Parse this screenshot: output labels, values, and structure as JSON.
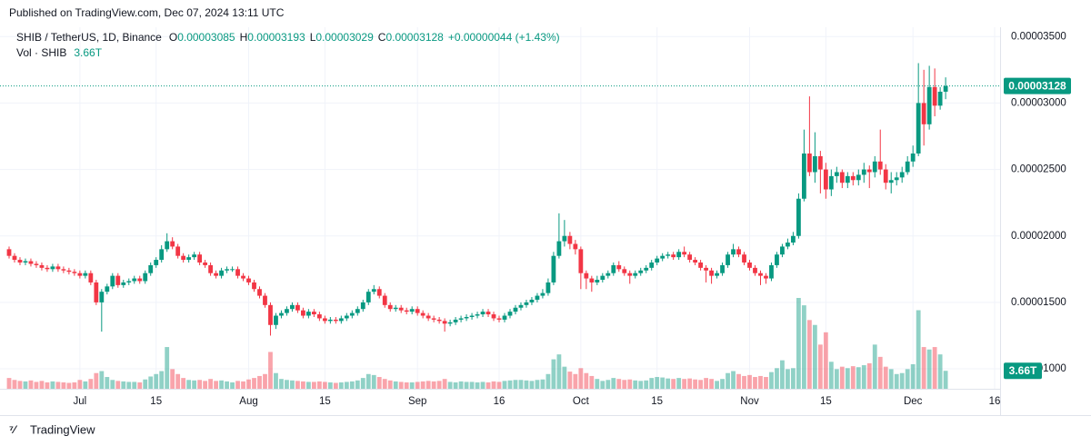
{
  "header": {
    "published": "Published on TradingView.com, Dec 07, 2024 13:11 UTC",
    "brand": "TradingView"
  },
  "chart_data": {
    "type": "candlestick",
    "symbol": "SHIB / TetherUS, 1D, Binance",
    "legend_ohlc": [
      {
        "key": "O",
        "text": "0.00003085"
      },
      {
        "key": "H",
        "text": "0.00003193"
      },
      {
        "key": "L",
        "text": "0.00003029"
      },
      {
        "key": "C",
        "text": "0.00003128"
      }
    ],
    "change": "+0.00000044 (+1.43%)",
    "volume_title": "Vol · SHIB",
    "volume_last": "3.66T",
    "last_price_label": "0.00003128",
    "up_color": "#089981",
    "down_color": "#f23645",
    "grid": true,
    "ylim": [
      8.5e-06,
      3.57e-05
    ],
    "yticks": [
      {
        "value": 3.5e-05,
        "label": "0.00003500"
      },
      {
        "value": 3e-05,
        "label": "0.00003000"
      },
      {
        "value": 2.5e-05,
        "label": "0.00002500"
      },
      {
        "value": 2e-05,
        "label": "0.00002000"
      },
      {
        "value": 1.5e-05,
        "label": "0.00001500"
      },
      {
        "value": 1e-05,
        "label": "0.00001000"
      }
    ],
    "xlim": [
      -1.67,
      182
    ],
    "xticks": [
      {
        "value": 13,
        "label": "Jul"
      },
      {
        "value": 27,
        "label": "15"
      },
      {
        "value": 44,
        "label": "Aug"
      },
      {
        "value": 58,
        "label": "15"
      },
      {
        "value": 75,
        "label": "Sep"
      },
      {
        "value": 90,
        "label": "16"
      },
      {
        "value": 105,
        "label": "Oct"
      },
      {
        "value": 119,
        "label": "15"
      },
      {
        "value": 136,
        "label": "Nov"
      },
      {
        "value": 150,
        "label": "15"
      },
      {
        "value": 166,
        "label": "Dec"
      },
      {
        "value": 181,
        "label": "16"
      }
    ],
    "open": [
      1.9e-05,
      1.85e-05,
      1.82e-05,
      1.8e-05,
      1.81e-05,
      1.79e-05,
      1.78e-05,
      1.76e-05,
      1.75e-05,
      1.77e-05,
      1.75e-05,
      1.74e-05,
      1.73e-05,
      1.72e-05,
      1.7e-05,
      1.72e-05,
      1.65e-05,
      1.5e-05,
      1.58e-05,
      1.62e-05,
      1.7e-05,
      1.63e-05,
      1.65e-05,
      1.66e-05,
      1.68e-05,
      1.66e-05,
      1.72e-05,
      1.78e-05,
      1.82e-05,
      1.9e-05,
      1.96e-05,
      1.92e-05,
      1.85e-05,
      1.82e-05,
      1.84e-05,
      1.86e-05,
      1.8e-05,
      1.78e-05,
      1.72e-05,
      1.7e-05,
      1.74e-05,
      1.75e-05,
      1.75e-05,
      1.7e-05,
      1.68e-05,
      1.65e-05,
      1.6e-05,
      1.55e-05,
      1.48e-05,
      1.33e-05,
      1.4e-05,
      1.42e-05,
      1.45e-05,
      1.48e-05,
      1.44e-05,
      1.4e-05,
      1.43e-05,
      1.41e-05,
      1.38e-05,
      1.36e-05,
      1.37e-05,
      1.36e-05,
      1.38e-05,
      1.4e-05,
      1.42e-05,
      1.45e-05,
      1.5e-05,
      1.58e-05,
      1.6e-05,
      1.55e-05,
      1.48e-05,
      1.45e-05,
      1.46e-05,
      1.44e-05,
      1.43e-05,
      1.45e-05,
      1.42e-05,
      1.4e-05,
      1.38e-05,
      1.37e-05,
      1.36e-05,
      1.34e-05,
      1.35e-05,
      1.37e-05,
      1.38e-05,
      1.39e-05,
      1.4e-05,
      1.41e-05,
      1.43e-05,
      1.41e-05,
      1.38e-05,
      1.37e-05,
      1.4e-05,
      1.43e-05,
      1.46e-05,
      1.48e-05,
      1.5e-05,
      1.52e-05,
      1.55e-05,
      1.57e-05,
      1.65e-05,
      1.85e-05,
      1.96e-05,
      2e-05,
      1.94e-05,
      1.9e-05,
      1.72e-05,
      1.68e-05,
      1.65e-05,
      1.67e-05,
      1.7e-05,
      1.72e-05,
      1.78e-05,
      1.75e-05,
      1.72e-05,
      1.7e-05,
      1.72e-05,
      1.74e-05,
      1.76e-05,
      1.8e-05,
      1.83e-05,
      1.85e-05,
      1.86e-05,
      1.84e-05,
      1.88e-05,
      1.86e-05,
      1.82e-05,
      1.8e-05,
      1.76e-05,
      1.74e-05,
      1.7e-05,
      1.72e-05,
      1.78e-05,
      1.86e-05,
      1.9e-05,
      1.86e-05,
      1.8e-05,
      1.76e-05,
      1.72e-05,
      1.7e-05,
      1.68e-05,
      1.78e-05,
      1.86e-05,
      1.92e-05,
      1.95e-05,
      2e-05,
      2.28e-05,
      2.62e-05,
      2.48e-05,
      2.6e-05,
      2.5e-05,
      2.35e-05,
      2.45e-05,
      2.48e-05,
      2.4e-05,
      2.45e-05,
      2.42e-05,
      2.46e-05,
      2.5e-05,
      2.48e-05,
      2.56e-05,
      2.5e-05,
      2.4e-05,
      2.42e-05,
      2.44e-05,
      2.48e-05,
      2.56e-05,
      2.62e-05,
      3e-05,
      2.84e-05,
      3.12e-05,
      2.98e-05,
      3.085e-05
    ],
    "high": [
      1.92e-05,
      1.87e-05,
      1.84e-05,
      1.83e-05,
      1.83e-05,
      1.81e-05,
      1.8e-05,
      1.78e-05,
      1.79e-05,
      1.79e-05,
      1.77e-05,
      1.76e-05,
      1.75e-05,
      1.74e-05,
      1.74e-05,
      1.74e-05,
      1.67e-05,
      1.6e-05,
      1.64e-05,
      1.72e-05,
      1.72e-05,
      1.67e-05,
      1.68e-05,
      1.7e-05,
      1.7e-05,
      1.74e-05,
      1.8e-05,
      1.84e-05,
      1.93e-05,
      2.02e-05,
      1.99e-05,
      1.94e-05,
      1.87e-05,
      1.86e-05,
      1.88e-05,
      1.88e-05,
      1.82e-05,
      1.8e-05,
      1.74e-05,
      1.76e-05,
      1.77e-05,
      1.77e-05,
      1.77e-05,
      1.72e-05,
      1.7e-05,
      1.67e-05,
      1.62e-05,
      1.57e-05,
      1.5e-05,
      1.42e-05,
      1.44e-05,
      1.47e-05,
      1.5e-05,
      1.5e-05,
      1.46e-05,
      1.45e-05,
      1.45e-05,
      1.43e-05,
      1.4e-05,
      1.39e-05,
      1.39e-05,
      1.4e-05,
      1.42e-05,
      1.44e-05,
      1.47e-05,
      1.52e-05,
      1.6e-05,
      1.63e-05,
      1.62e-05,
      1.57e-05,
      1.5e-05,
      1.48e-05,
      1.48e-05,
      1.46e-05,
      1.47e-05,
      1.47e-05,
      1.44e-05,
      1.42e-05,
      1.4e-05,
      1.39e-05,
      1.38e-05,
      1.37e-05,
      1.39e-05,
      1.4e-05,
      1.41e-05,
      1.42e-05,
      1.43e-05,
      1.45e-05,
      1.45e-05,
      1.43e-05,
      1.4e-05,
      1.42e-05,
      1.45e-05,
      1.48e-05,
      1.5e-05,
      1.52e-05,
      1.54e-05,
      1.57e-05,
      1.6e-05,
      1.68e-05,
      1.88e-05,
      2.17e-05,
      2.12e-05,
      2.03e-05,
      1.97e-05,
      1.92e-05,
      1.74e-05,
      1.7e-05,
      1.7e-05,
      1.72e-05,
      1.74e-05,
      1.8e-05,
      1.81e-05,
      1.77e-05,
      1.74e-05,
      1.74e-05,
      1.76e-05,
      1.78e-05,
      1.82e-05,
      1.85e-05,
      1.87e-05,
      1.88e-05,
      1.88e-05,
      1.9e-05,
      1.92e-05,
      1.88e-05,
      1.84e-05,
      1.82e-05,
      1.78e-05,
      1.76e-05,
      1.74e-05,
      1.8e-05,
      1.88e-05,
      1.94e-05,
      1.92e-05,
      1.88e-05,
      1.82e-05,
      1.78e-05,
      1.74e-05,
      1.72e-05,
      1.8e-05,
      1.88e-05,
      1.94e-05,
      1.98e-05,
      2.03e-05,
      2.32e-05,
      2.8e-05,
      3.05e-05,
      2.78e-05,
      2.64e-05,
      2.55e-05,
      2.5e-05,
      2.52e-05,
      2.5e-05,
      2.48e-05,
      2.48e-05,
      2.5e-05,
      2.55e-05,
      2.53e-05,
      2.6e-05,
      2.8e-05,
      2.54e-05,
      2.48e-05,
      2.48e-05,
      2.52e-05,
      2.6e-05,
      2.68e-05,
      3.3e-05,
      3.25e-05,
      3.28e-05,
      3.26e-05,
      3.12e-05,
      3.193e-05
    ],
    "low": [
      1.83e-05,
      1.8e-05,
      1.78e-05,
      1.78e-05,
      1.77e-05,
      1.76e-05,
      1.74e-05,
      1.73e-05,
      1.73e-05,
      1.73e-05,
      1.72e-05,
      1.71e-05,
      1.7e-05,
      1.68e-05,
      1.68e-05,
      1.63e-05,
      1.48e-05,
      1.28e-05,
      1.56e-05,
      1.6e-05,
      1.61e-05,
      1.61e-05,
      1.63e-05,
      1.64e-05,
      1.64e-05,
      1.64e-05,
      1.7e-05,
      1.76e-05,
      1.8e-05,
      1.88e-05,
      1.9e-05,
      1.83e-05,
      1.8e-05,
      1.8e-05,
      1.82e-05,
      1.78e-05,
      1.76e-05,
      1.7e-05,
      1.68e-05,
      1.68e-05,
      1.72e-05,
      1.73e-05,
      1.68e-05,
      1.66e-05,
      1.63e-05,
      1.58e-05,
      1.53e-05,
      1.46e-05,
      1.25e-05,
      1.3e-05,
      1.38e-05,
      1.4e-05,
      1.43e-05,
      1.42e-05,
      1.38e-05,
      1.38e-05,
      1.39e-05,
      1.36e-05,
      1.34e-05,
      1.34e-05,
      1.34e-05,
      1.34e-05,
      1.36e-05,
      1.38e-05,
      1.4e-05,
      1.43e-05,
      1.48e-05,
      1.56e-05,
      1.53e-05,
      1.46e-05,
      1.43e-05,
      1.43e-05,
      1.42e-05,
      1.41e-05,
      1.41e-05,
      1.4e-05,
      1.38e-05,
      1.36e-05,
      1.35e-05,
      1.34e-05,
      1.28e-05,
      1.32e-05,
      1.33e-05,
      1.35e-05,
      1.36e-05,
      1.37e-05,
      1.38e-05,
      1.39e-05,
      1.39e-05,
      1.36e-05,
      1.35e-05,
      1.35e-05,
      1.38e-05,
      1.41e-05,
      1.44e-05,
      1.46e-05,
      1.48e-05,
      1.5e-05,
      1.53e-05,
      1.55e-05,
      1.63e-05,
      1.83e-05,
      1.92e-05,
      1.9e-05,
      1.86e-05,
      1.6e-05,
      1.6e-05,
      1.58e-05,
      1.63e-05,
      1.65e-05,
      1.68e-05,
      1.7e-05,
      1.73e-05,
      1.7e-05,
      1.64e-05,
      1.68e-05,
      1.7e-05,
      1.72e-05,
      1.74e-05,
      1.78e-05,
      1.81e-05,
      1.83e-05,
      1.82e-05,
      1.82e-05,
      1.84e-05,
      1.8e-05,
      1.78e-05,
      1.74e-05,
      1.65e-05,
      1.64e-05,
      1.68e-05,
      1.7e-05,
      1.76e-05,
      1.84e-05,
      1.84e-05,
      1.78e-05,
      1.74e-05,
      1.7e-05,
      1.63e-05,
      1.64e-05,
      1.66e-05,
      1.76e-05,
      1.84e-05,
      1.9e-05,
      1.93e-05,
      1.98e-05,
      2.26e-05,
      2.45e-05,
      2.4e-05,
      2.32e-05,
      2.28e-05,
      2.3e-05,
      2.4e-05,
      2.36e-05,
      2.36e-05,
      2.38e-05,
      2.38e-05,
      2.4e-05,
      2.36e-05,
      2.44e-05,
      2.46e-05,
      2.35e-05,
      2.32e-05,
      2.38e-05,
      2.4e-05,
      2.46e-05,
      2.52e-05,
      2.6e-05,
      2.68e-05,
      2.8e-05,
      2.9e-05,
      2.95e-05,
      3.029e-05
    ],
    "close": [
      1.85e-05,
      1.82e-05,
      1.8e-05,
      1.81e-05,
      1.79e-05,
      1.78e-05,
      1.76e-05,
      1.75e-05,
      1.77e-05,
      1.75e-05,
      1.74e-05,
      1.73e-05,
      1.72e-05,
      1.7e-05,
      1.72e-05,
      1.65e-05,
      1.5e-05,
      1.58e-05,
      1.62e-05,
      1.7e-05,
      1.63e-05,
      1.65e-05,
      1.66e-05,
      1.68e-05,
      1.66e-05,
      1.72e-05,
      1.78e-05,
      1.82e-05,
      1.9e-05,
      1.96e-05,
      1.92e-05,
      1.85e-05,
      1.82e-05,
      1.84e-05,
      1.86e-05,
      1.8e-05,
      1.78e-05,
      1.72e-05,
      1.7e-05,
      1.74e-05,
      1.75e-05,
      1.75e-05,
      1.7e-05,
      1.68e-05,
      1.65e-05,
      1.6e-05,
      1.55e-05,
      1.48e-05,
      1.33e-05,
      1.4e-05,
      1.42e-05,
      1.45e-05,
      1.48e-05,
      1.44e-05,
      1.4e-05,
      1.43e-05,
      1.41e-05,
      1.38e-05,
      1.36e-05,
      1.37e-05,
      1.36e-05,
      1.38e-05,
      1.4e-05,
      1.42e-05,
      1.45e-05,
      1.5e-05,
      1.58e-05,
      1.6e-05,
      1.55e-05,
      1.48e-05,
      1.45e-05,
      1.46e-05,
      1.44e-05,
      1.43e-05,
      1.45e-05,
      1.42e-05,
      1.4e-05,
      1.38e-05,
      1.37e-05,
      1.36e-05,
      1.34e-05,
      1.35e-05,
      1.37e-05,
      1.38e-05,
      1.39e-05,
      1.4e-05,
      1.41e-05,
      1.43e-05,
      1.41e-05,
      1.38e-05,
      1.37e-05,
      1.4e-05,
      1.43e-05,
      1.46e-05,
      1.48e-05,
      1.5e-05,
      1.52e-05,
      1.55e-05,
      1.57e-05,
      1.65e-05,
      1.85e-05,
      1.96e-05,
      2e-05,
      1.94e-05,
      1.9e-05,
      1.72e-05,
      1.68e-05,
      1.65e-05,
      1.67e-05,
      1.7e-05,
      1.72e-05,
      1.78e-05,
      1.75e-05,
      1.72e-05,
      1.7e-05,
      1.72e-05,
      1.74e-05,
      1.76e-05,
      1.8e-05,
      1.83e-05,
      1.85e-05,
      1.86e-05,
      1.84e-05,
      1.88e-05,
      1.86e-05,
      1.82e-05,
      1.8e-05,
      1.76e-05,
      1.74e-05,
      1.7e-05,
      1.72e-05,
      1.78e-05,
      1.86e-05,
      1.9e-05,
      1.86e-05,
      1.8e-05,
      1.76e-05,
      1.72e-05,
      1.7e-05,
      1.68e-05,
      1.78e-05,
      1.86e-05,
      1.92e-05,
      1.95e-05,
      2e-05,
      2.28e-05,
      2.62e-05,
      2.48e-05,
      2.6e-05,
      2.5e-05,
      2.35e-05,
      2.45e-05,
      2.48e-05,
      2.4e-05,
      2.45e-05,
      2.42e-05,
      2.46e-05,
      2.5e-05,
      2.48e-05,
      2.56e-05,
      2.5e-05,
      2.4e-05,
      2.42e-05,
      2.44e-05,
      2.48e-05,
      2.56e-05,
      2.62e-05,
      3e-05,
      2.84e-05,
      3.12e-05,
      2.98e-05,
      3.085e-05,
      3.128e-05
    ],
    "volume": [
      2200000000000.0,
      1800000000000.0,
      1600000000000.0,
      1500000000000.0,
      1700000000000.0,
      1400000000000.0,
      1600000000000.0,
      1300000000000.0,
      1500000000000.0,
      1400000000000.0,
      1300000000000.0,
      1200000000000.0,
      1300000000000.0,
      1800000000000.0,
      1500000000000.0,
      2000000000000.0,
      3200000000000.0,
      3600000000000.0,
      2400000000000.0,
      1800000000000.0,
      1600000000000.0,
      1500000000000.0,
      1400000000000.0,
      1400000000000.0,
      1300000000000.0,
      1900000000000.0,
      2500000000000.0,
      3000000000000.0,
      3600000000000.0,
      8500000000000.0,
      4000000000000.0,
      3000000000000.0,
      2200000000000.0,
      1800000000000.0,
      1700000000000.0,
      1800000000000.0,
      1600000000000.0,
      2000000000000.0,
      1600000000000.0,
      1700000000000.0,
      1500000000000.0,
      1300000000000.0,
      1600000000000.0,
      1500000000000.0,
      1900000000000.0,
      2200000000000.0,
      2600000000000.0,
      3000000000000.0,
      7500000000000.0,
      3200000000000.0,
      2000000000000.0,
      1800000000000.0,
      1700000000000.0,
      1600000000000.0,
      1500000000000.0,
      1400000000000.0,
      1400000000000.0,
      1500000000000.0,
      1400000000000.0,
      1300000000000.0,
      1200000000000.0,
      1300000000000.0,
      1400000000000.0,
      1500000000000.0,
      1700000000000.0,
      2200000000000.0,
      3000000000000.0,
      2800000000000.0,
      2400000000000.0,
      2000000000000.0,
      1700000000000.0,
      1500000000000.0,
      1400000000000.0,
      1300000000000.0,
      1300000000000.0,
      1400000000000.0,
      1500000000000.0,
      1600000000000.0,
      1500000000000.0,
      1600000000000.0,
      2000000000000.0,
      1400000000000.0,
      1300000000000.0,
      1500000000000.0,
      1400000000000.0,
      1400000000000.0,
      1300000000000.0,
      1400000000000.0,
      1300000000000.0,
      1500000000000.0,
      1400000000000.0,
      1600000000000.0,
      1700000000000.0,
      1800000000000.0,
      1800000000000.0,
      1700000000000.0,
      1600000000000.0,
      1800000000000.0,
      1900000000000.0,
      3000000000000.0,
      6000000000000.0,
      7000000000000.0,
      4500000000000.0,
      3500000000000.0,
      3000000000000.0,
      4200000000000.0,
      3200000000000.0,
      2600000000000.0,
      2000000000000.0,
      1600000000000.0,
      1800000000000.0,
      2200000000000.0,
      2000000000000.0,
      1800000000000.0,
      1900000000000.0,
      1700000000000.0,
      1600000000000.0,
      1700000000000.0,
      2200000000000.0,
      2400000000000.0,
      2300000000000.0,
      2100000000000.0,
      2000000000000.0,
      2200000000000.0,
      2000000000000.0,
      2100000000000.0,
      1900000000000.0,
      1800000000000.0,
      2200000000000.0,
      2000000000000.0,
      1600000000000.0,
      2000000000000.0,
      3200000000000.0,
      3600000000000.0,
      3000000000000.0,
      2600000000000.0,
      2800000000000.0,
      2400000000000.0,
      2600000000000.0,
      2400000000000.0,
      3400000000000.0,
      4200000000000.0,
      5800000000000.0,
      4000000000000.0,
      4200000000000.0,
      18500000000000.0,
      17000000000000.0,
      14000000000000.0,
      13000000000000.0,
      9000000000000.0,
      11500000000000.0,
      5500000000000.0,
      4000000000000.0,
      4500000000000.0,
      4200000000000.0,
      4600000000000.0,
      4400000000000.0,
      4800000000000.0,
      5200000000000.0,
      9000000000000.0,
      6500000000000.0,
      4500000000000.0,
      4000000000000.0,
      3000000000000.0,
      3200000000000.0,
      4000000000000.0,
      5000000000000.0,
      16000000000000.0,
      8500000000000.0,
      8000000000000.0,
      8500000000000.0,
      7000000000000.0,
      3660000000000.0
    ]
  }
}
